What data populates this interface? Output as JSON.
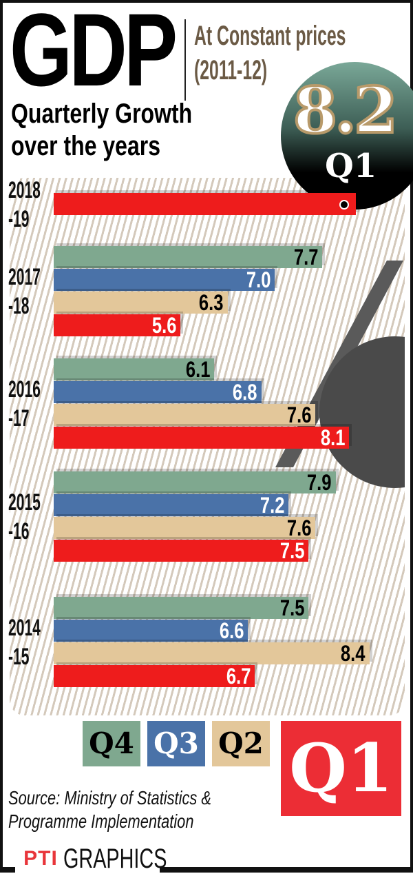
{
  "header": {
    "title": "GDP",
    "subtitle_line1": "At Constant prices",
    "subtitle_line2": "(2011-12)",
    "heading_line1": "Quarterly Growth",
    "heading_line2": "over the years"
  },
  "highlight": {
    "value": "8.2",
    "quarter": "Q1"
  },
  "chart_data": {
    "type": "bar",
    "orientation": "horizontal",
    "categories": [
      "2018-19",
      "2017-18",
      "2016-17",
      "2015-16",
      "2014-15"
    ],
    "year_labels": [
      [
        "2018",
        "-19"
      ],
      [
        "2017",
        "-18"
      ],
      [
        "2016",
        "-17"
      ],
      [
        "2015",
        "-16"
      ],
      [
        "2014",
        "-15"
      ]
    ],
    "series": [
      {
        "name": "Q4",
        "color": "#7fa88f",
        "label_color": "#000000",
        "values": [
          null,
          7.7,
          6.1,
          7.9,
          7.5
        ]
      },
      {
        "name": "Q3",
        "color": "#4a72a8",
        "label_color": "#ffffff",
        "values": [
          null,
          7.0,
          6.8,
          7.2,
          6.6
        ]
      },
      {
        "name": "Q2",
        "color": "#e3c79a",
        "label_color": "#000000",
        "values": [
          null,
          6.3,
          7.6,
          7.6,
          8.4
        ]
      },
      {
        "name": "Q1",
        "color": "#ee1c1c",
        "label_color": "#ffffff",
        "values": [
          8.2,
          5.6,
          8.1,
          7.5,
          6.7
        ]
      }
    ],
    "legend": "bottom"
  },
  "legend": {
    "q4": "Q4",
    "q3": "Q3",
    "q2": "Q2",
    "q1": "Q1"
  },
  "footer": {
    "source_line1": "Source: Ministry  of Statistics &",
    "source_line2": "Programme Implementation",
    "brand": "PTI",
    "graphics": "GRAPHICS"
  }
}
